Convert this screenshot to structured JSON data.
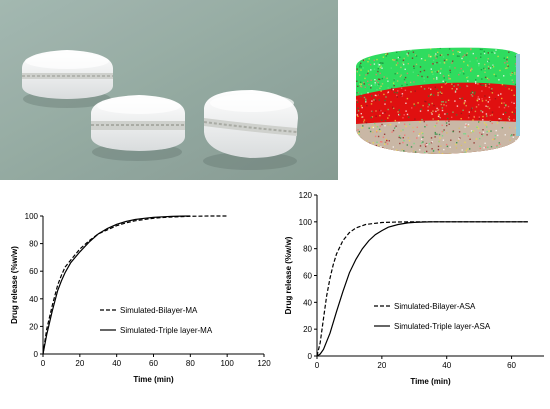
{
  "chart_data": [
    {
      "type": "line",
      "xlabel": "Time (min)",
      "ylabel": "Drug release (%w/w)",
      "xlim": [
        0,
        120
      ],
      "ylim": [
        0,
        100
      ],
      "xticks": [
        0,
        20,
        40,
        60,
        80,
        100,
        120
      ],
      "yticks": [
        0,
        20,
        40,
        60,
        80,
        100
      ],
      "grid": false,
      "legend_placement": "center-right",
      "series": [
        {
          "name": "Simulated-Bilayer-MA",
          "style": "dashed",
          "x": [
            0,
            2,
            5,
            8,
            10,
            12,
            15,
            20,
            25,
            30,
            35,
            40,
            45,
            50,
            55,
            60,
            65,
            70,
            75,
            80,
            90,
            100
          ],
          "y": [
            0,
            18,
            35,
            50,
            57,
            63,
            68,
            76,
            82,
            87,
            90,
            93,
            95,
            96.5,
            97.5,
            98.3,
            98.9,
            99.3,
            99.6,
            99.8,
            100,
            100
          ]
        },
        {
          "name": "Simulated-Triple layer-MA",
          "style": "solid",
          "x": [
            0,
            2,
            5,
            8,
            10,
            12,
            15,
            20,
            25,
            30,
            35,
            40,
            45,
            50,
            55,
            60,
            65,
            70,
            75,
            80
          ],
          "y": [
            0,
            14,
            31,
            46,
            53,
            59,
            66,
            74,
            81,
            87,
            91,
            94,
            96,
            97.5,
            98.3,
            99,
            99.4,
            99.7,
            99.9,
            100
          ]
        }
      ]
    },
    {
      "type": "line",
      "xlabel": "Time (min)",
      "ylabel": "Drug release (%w/w)",
      "xlim": [
        0,
        70
      ],
      "ylim": [
        0,
        120
      ],
      "xticks": [
        0,
        20,
        40,
        60
      ],
      "yticks": [
        0,
        20,
        40,
        60,
        80,
        100,
        120
      ],
      "grid": false,
      "legend_placement": "center-right",
      "series": [
        {
          "name": "Simulated-Bilayer-ASA",
          "style": "dashed",
          "x": [
            0,
            1,
            2,
            3,
            4,
            5,
            6,
            8,
            10,
            12,
            15,
            20,
            25,
            30,
            35,
            40,
            50,
            65
          ],
          "y": [
            0,
            10,
            28,
            45,
            58,
            68,
            76,
            86,
            92,
            95.5,
            98,
            99.5,
            99.9,
            100,
            100,
            100,
            100,
            100
          ]
        },
        {
          "name": "Simulated-Triple layer-ASA",
          "style": "solid",
          "x": [
            0,
            1,
            2,
            4,
            6,
            8,
            10,
            12,
            14,
            16,
            18,
            20,
            22,
            25,
            28,
            30,
            33,
            36,
            40,
            50,
            65
          ],
          "y": [
            0,
            1.5,
            5,
            17,
            33,
            48,
            62,
            72,
            80,
            86,
            90.5,
            93.5,
            96,
            98,
            99.2,
            99.6,
            99.9,
            100,
            100,
            100,
            100
          ]
        }
      ]
    }
  ],
  "colors": {
    "photo_background": "#8ea59c",
    "tablet_face": "#f5f5f3",
    "render_green": "#2fdc5f",
    "render_red": "#e01010"
  }
}
